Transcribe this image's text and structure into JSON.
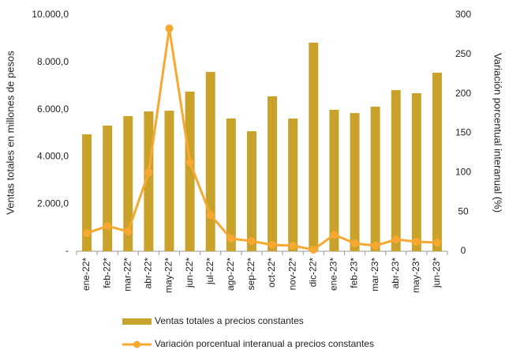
{
  "chart_data": {
    "type": "bar-line",
    "categories": [
      "ene-22*",
      "feb-22*",
      "mar-22*",
      "abr-22*",
      "may-22*",
      "jun-22*",
      "jul-22*",
      "ago-22*",
      "sep-22*",
      "oct-22*",
      "nov-22*",
      "dic-22*",
      "ene-23*",
      "feb-23*",
      "mar-23*",
      "abr-23*",
      "may-23*",
      "jun-23*"
    ],
    "series": [
      {
        "name": "Ventas totales a precios constantes",
        "type": "bar",
        "color": "#c9a22c",
        "axis": "y",
        "values": [
          4950,
          5320,
          5720,
          5920,
          5950,
          6760,
          7590,
          5620,
          5080,
          6560,
          5620,
          8830,
          5990,
          5850,
          6120,
          6820,
          6690,
          7560
        ]
      },
      {
        "name": "Variación porcentual interanual a precios constantes",
        "type": "line",
        "color": "#f7a830",
        "axis": "y2",
        "values": [
          23,
          32,
          25,
          100,
          283,
          113,
          46,
          16,
          13,
          8,
          7,
          2,
          21,
          10,
          7,
          15,
          12,
          11
        ]
      }
    ],
    "ylabel": "Ventas totales en millones de pesos",
    "y2label": "Variación porcentual interanual (%)",
    "ylim": [
      0,
      10000
    ],
    "yticks": [
      {
        "value": 0,
        "label": "-"
      },
      {
        "value": 2000,
        "label": "2.000,0"
      },
      {
        "value": 4000,
        "label": "4.000,0"
      },
      {
        "value": 6000,
        "label": "6.000,0"
      },
      {
        "value": 8000,
        "label": "8.000,0"
      },
      {
        "value": 10000,
        "label": "10.000,0"
      }
    ],
    "y2lim": [
      0,
      300
    ],
    "y2ticks": [
      0,
      50,
      100,
      150,
      200,
      250,
      300
    ],
    "grid": false,
    "legend": "bottom"
  }
}
